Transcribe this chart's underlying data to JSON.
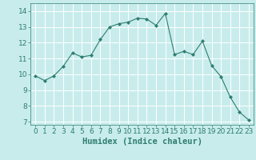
{
  "x": [
    0,
    1,
    2,
    3,
    4,
    5,
    6,
    7,
    8,
    9,
    10,
    11,
    12,
    13,
    14,
    15,
    16,
    17,
    18,
    19,
    20,
    21,
    22,
    23
  ],
  "y": [
    9.9,
    9.6,
    9.9,
    10.5,
    11.35,
    11.1,
    11.2,
    12.2,
    13.0,
    13.2,
    13.3,
    13.55,
    13.5,
    13.1,
    13.85,
    11.25,
    11.45,
    11.25,
    12.1,
    10.55,
    9.85,
    8.55,
    7.6,
    7.1
  ],
  "line_color": "#2e7d6e",
  "marker": "D",
  "marker_size": 2.0,
  "bg_color": "#c8ecec",
  "grid_color": "#ffffff",
  "xlabel": "Humidex (Indice chaleur)",
  "xlabel_fontsize": 7.5,
  "tick_fontsize": 6.5,
  "ylim": [
    6.8,
    14.5
  ],
  "xlim": [
    -0.5,
    23.5
  ],
  "yticks": [
    7,
    8,
    9,
    10,
    11,
    12,
    13,
    14
  ],
  "xticks": [
    0,
    1,
    2,
    3,
    4,
    5,
    6,
    7,
    8,
    9,
    10,
    11,
    12,
    13,
    14,
    15,
    16,
    17,
    18,
    19,
    20,
    21,
    22,
    23
  ]
}
